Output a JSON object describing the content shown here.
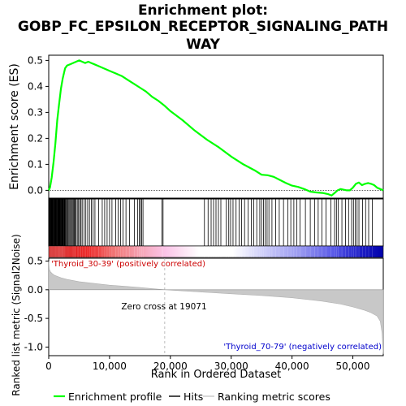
{
  "title_lines": [
    "Enrichment plot:",
    "GOBP_FC_EPSILON_RECEPTOR_SIGNALING_PATH",
    "WAY"
  ],
  "colors": {
    "es_line": "#00ff00",
    "hits": "#000000",
    "pos_text": "#cc0000",
    "neg_text": "#0000cc",
    "metric_fill": "#c8c8c8",
    "zero_line": "#c8c8c8"
  },
  "chart_data": [
    {
      "type": "line",
      "ylabel": "Enrichment score (ES)",
      "ylim": [
        -0.03,
        0.52
      ],
      "yticks": [
        0.0,
        0.1,
        0.2,
        0.3,
        0.4,
        0.5
      ],
      "ytick_labels": [
        "0.0",
        "0.1",
        "0.2",
        "0.3",
        "0.4",
        "0.5"
      ],
      "series": [
        {
          "x": [
            0,
            200,
            500,
            800,
            1100,
            1400,
            1700,
            2000,
            2300,
            2700,
            3000,
            3500,
            4000,
            4500,
            5000,
            5500,
            6000,
            6500,
            7000,
            7500,
            8000,
            9000,
            10000,
            11000,
            12000,
            13000,
            14000,
            15000,
            16000,
            17000,
            18000,
            19071,
            20000,
            22000,
            24000,
            26000,
            28000,
            30000,
            32000,
            34000,
            35000,
            36000,
            37000,
            38000,
            39000,
            40000,
            41000,
            42000,
            43000,
            44000,
            45000,
            46000,
            46500,
            47000,
            47500,
            48000,
            49000,
            49500,
            50000,
            50500,
            51000,
            51500,
            52000,
            52500,
            53000,
            53500,
            54000,
            54500,
            55000
          ],
          "values": [
            0.0,
            0.01,
            0.05,
            0.11,
            0.18,
            0.27,
            0.33,
            0.39,
            0.43,
            0.47,
            0.48,
            0.485,
            0.49,
            0.495,
            0.5,
            0.495,
            0.49,
            0.495,
            0.49,
            0.485,
            0.48,
            0.47,
            0.46,
            0.45,
            0.44,
            0.425,
            0.41,
            0.395,
            0.38,
            0.36,
            0.345,
            0.325,
            0.305,
            0.27,
            0.23,
            0.195,
            0.165,
            0.13,
            0.1,
            0.075,
            0.06,
            0.058,
            0.052,
            0.04,
            0.028,
            0.018,
            0.013,
            0.005,
            -0.005,
            -0.008,
            -0.01,
            -0.015,
            -0.02,
            -0.01,
            0.0,
            0.005,
            0.0,
            0.0,
            0.01,
            0.025,
            0.03,
            0.02,
            0.025,
            0.028,
            0.025,
            0.02,
            0.01,
            0.005,
            0.0
          ]
        }
      ]
    },
    {
      "type": "area",
      "xlabel": "Rank in Ordered Dataset",
      "ylabel": "Ranked list metric (Signal2Noise)",
      "xlim": [
        0,
        55000
      ],
      "ylim": [
        -1.15,
        0.55
      ],
      "xticks": [
        0,
        10000,
        20000,
        30000,
        40000,
        50000
      ],
      "xtick_labels": [
        "0",
        "10,000",
        "20,000",
        "30,000",
        "40,000",
        "50,000"
      ],
      "yticks": [
        0.5,
        0.0,
        -0.5,
        -1.0
      ],
      "ytick_labels": [
        "0.5",
        "0.0",
        "-0.5",
        "-1.0"
      ],
      "series": [
        {
          "x": [
            0,
            100,
            300,
            600,
            1000,
            2000,
            3000,
            5000,
            7500,
            10000,
            12500,
            15000,
            17500,
            19071,
            22000,
            25000,
            30000,
            35000,
            40000,
            45000,
            48000,
            50000,
            52000,
            53000,
            54000,
            54500,
            54800,
            55000
          ],
          "values": [
            0.5,
            0.36,
            0.31,
            0.28,
            0.25,
            0.21,
            0.18,
            0.14,
            0.11,
            0.08,
            0.06,
            0.04,
            0.015,
            0.0,
            -0.02,
            -0.04,
            -0.07,
            -0.1,
            -0.14,
            -0.2,
            -0.25,
            -0.3,
            -0.36,
            -0.4,
            -0.46,
            -0.55,
            -0.75,
            -1.12
          ]
        }
      ],
      "annotations": [
        "Zero cross at 19071",
        "'Thyroid_30-39' (positively correlated)",
        "'Thyroid_70-79' (negatively correlated)"
      ],
      "zero_cross": 19071
    }
  ],
  "hit_ranks": [
    50,
    120,
    200,
    280,
    350,
    420,
    500,
    580,
    650,
    720,
    800,
    870,
    950,
    1020,
    1100,
    1180,
    1250,
    1330,
    1400,
    1480,
    1560,
    1630,
    1700,
    1780,
    1850,
    1930,
    2000,
    2080,
    2150,
    2230,
    2300,
    2380,
    2450,
    2550,
    2650,
    2750,
    2850,
    3000,
    3150,
    3300,
    3450,
    3600,
    3750,
    3900,
    4050,
    4200,
    4350,
    4500,
    4700,
    4900,
    5100,
    5300,
    5500,
    5800,
    6100,
    6400,
    6700,
    7000,
    7300,
    7600,
    8200,
    8800,
    9200,
    9600,
    10000,
    10400,
    11000,
    11400,
    11800,
    12200,
    12700,
    13300,
    14100,
    14600,
    14900,
    15100,
    15300,
    15500,
    18600,
    18800,
    25600,
    26200,
    26700,
    27100,
    27500,
    27900,
    28300,
    29200,
    29600,
    29900,
    30300,
    30800,
    31300,
    31700,
    32200,
    32800,
    33300,
    33700,
    34200,
    34700,
    35000,
    35300,
    35600,
    35900,
    36200,
    36700,
    37300,
    37900,
    38600,
    39300,
    39800,
    40300,
    40800,
    41300,
    42200,
    43000,
    43700,
    44300,
    44900,
    45600,
    46400,
    47000,
    47300,
    47600,
    48200,
    48800,
    49300,
    49800,
    50100,
    50400,
    50700,
    51000,
    51600,
    52100,
    52600,
    53200
  ]
}
